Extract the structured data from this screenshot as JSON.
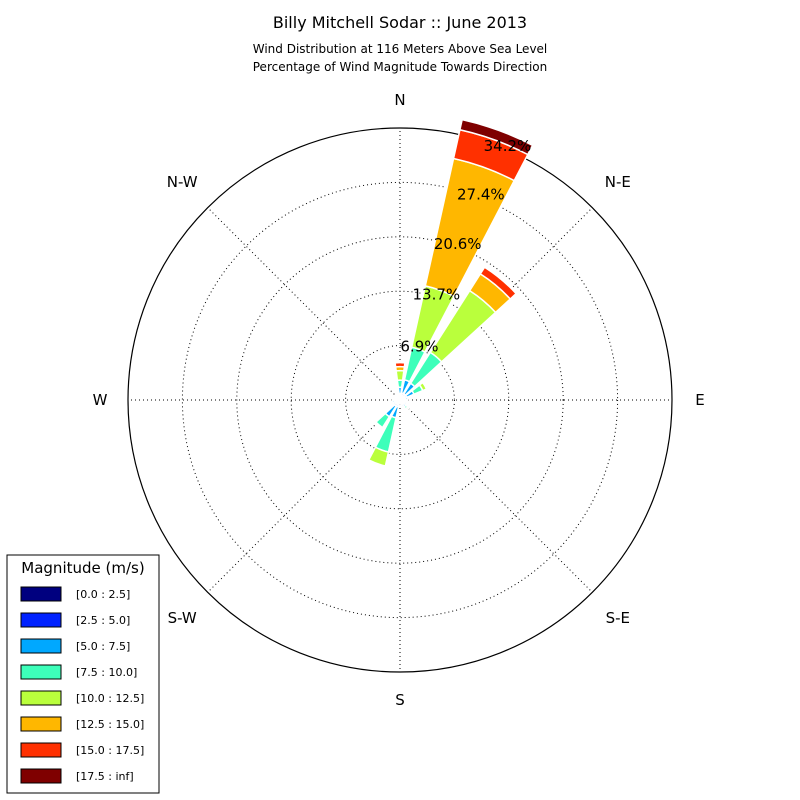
{
  "chart_data": {
    "type": "windrose",
    "title": "Billy Mitchell Sodar :: June 2013",
    "subtitle_lines": [
      "Wind Distribution at 116 Meters Above Sea Level",
      "Percentage of Wind Magnitude Towards Direction"
    ],
    "directions": [
      "N",
      "N-E",
      "E",
      "S-E",
      "S",
      "S-W",
      "W",
      "N-W"
    ],
    "ring_labels": [
      "6.9%",
      "13.7%",
      "20.6%",
      "27.4%",
      "34.2%"
    ],
    "rmax": 34.2,
    "grid": true,
    "legend": {
      "title": "Magnitude (m/s)",
      "placement": "bottom-left",
      "entries": [
        "[0.0 : 2.5]",
        "[2.5 : 5.0]",
        "[5.0 : 7.5]",
        "[7.5 : 10.0]",
        "[10.0 : 12.5]",
        "[12.5 : 15.0]",
        "[15.0 : 17.5]",
        "[17.5 : inf]"
      ]
    },
    "colors": [
      "#00007f",
      "#0022ff",
      "#00a8ff",
      "#3dffba",
      "#baff3c",
      "#ffb700",
      "#ff3000",
      "#7f0000"
    ],
    "sectors": [
      {
        "direction_deg": 0,
        "values": [
          0.3,
          0.5,
          0.8,
          0.9,
          1.2,
          0.5,
          0.5,
          0.0
        ]
      },
      {
        "direction_deg": 20,
        "values": [
          0.3,
          0.6,
          1.7,
          4.2,
          7.9,
          16.4,
          3.7,
          1.3
        ]
      },
      {
        "direction_deg": 40,
        "values": [
          0.3,
          0.6,
          1.6,
          4.6,
          9.2,
          2.5,
          1.0,
          0.0
        ]
      },
      {
        "direction_deg": 60,
        "values": [
          0.3,
          0.6,
          1.0,
          1.2,
          0.5,
          0.0,
          0.0,
          0.0
        ]
      },
      {
        "direction_deg": 80,
        "values": [
          0.2,
          0.5,
          0.3,
          0.0,
          0.0,
          0.0,
          0.0,
          0.0
        ]
      },
      {
        "direction_deg": 100,
        "values": [
          0.2,
          0.3,
          0.0,
          0.0,
          0.0,
          0.0,
          0.0,
          0.0
        ]
      },
      {
        "direction_deg": 120,
        "values": [
          0.2,
          0.4,
          0.3,
          0.0,
          0.0,
          0.0,
          0.0,
          0.0
        ]
      },
      {
        "direction_deg": 140,
        "values": [
          0.2,
          0.4,
          0.4,
          0.3,
          0.2,
          0.0,
          0.0,
          0.0
        ]
      },
      {
        "direction_deg": 160,
        "values": [
          0.2,
          0.4,
          0.3,
          0.0,
          0.0,
          0.0,
          0.0,
          0.0
        ]
      },
      {
        "direction_deg": 180,
        "values": [
          0.2,
          0.3,
          0.0,
          0.0,
          0.0,
          0.0,
          0.0,
          0.0
        ]
      },
      {
        "direction_deg": 200,
        "values": [
          0.3,
          0.6,
          1.4,
          4.4,
          1.8,
          0.0,
          0.0,
          0.0
        ]
      },
      {
        "direction_deg": 220,
        "values": [
          0.3,
          0.6,
          1.6,
          1.6,
          0.0,
          0.0,
          0.0,
          0.0
        ]
      },
      {
        "direction_deg": 240,
        "values": [
          0.2,
          0.4,
          0.3,
          0.0,
          0.0,
          0.0,
          0.0,
          0.0
        ]
      },
      {
        "direction_deg": 260,
        "values": [
          0.2,
          0.4,
          0.4,
          0.0,
          0.0,
          0.0,
          0.0,
          0.0
        ]
      },
      {
        "direction_deg": 280,
        "values": [
          0.2,
          0.3,
          0.0,
          0.0,
          0.0,
          0.0,
          0.0,
          0.0
        ]
      },
      {
        "direction_deg": 300,
        "values": [
          0.2,
          0.3,
          0.0,
          0.0,
          0.0,
          0.0,
          0.0,
          0.0
        ]
      },
      {
        "direction_deg": 320,
        "values": [
          0.2,
          0.3,
          0.2,
          0.0,
          0.0,
          0.0,
          0.0,
          0.0
        ]
      },
      {
        "direction_deg": 340,
        "values": [
          0.2,
          0.3,
          0.2,
          0.0,
          0.0,
          0.0,
          0.0,
          0.0
        ]
      }
    ]
  }
}
